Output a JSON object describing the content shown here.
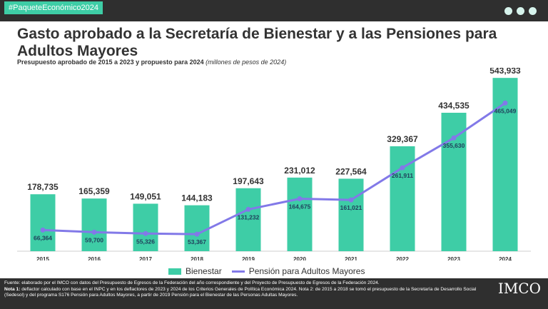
{
  "header": {
    "hashtag": "#PaqueteEconómico2024"
  },
  "title": "Gasto aprobado a la Secretaría de Bienestar y a las Pensiones para Adultos Mayores",
  "subtitle": {
    "bold": "Presupuesto aprobado de 2015 a 2023 y propuesto para 2024",
    "italic": "(millones de pesos de 2024)"
  },
  "colors": {
    "bar": "#3ecda6",
    "line": "#8279e8",
    "dark": "#2f2f2f"
  },
  "chart_data": {
    "type": "bar",
    "categories": [
      "2015",
      "2016",
      "2017",
      "2018",
      "2019",
      "2020",
      "2021",
      "2022",
      "2023",
      "2024"
    ],
    "series": [
      {
        "name": "Bienestar",
        "type": "bar",
        "values": [
          178735,
          165359,
          149051,
          144183,
          197643,
          231012,
          227564,
          329367,
          434535,
          543933
        ],
        "labels": [
          "178,735",
          "165,359",
          "149,051",
          "144,183",
          "197,643",
          "231,012",
          "227,564",
          "329,367",
          "434,535",
          "543,933"
        ]
      },
      {
        "name": "Pensión para Adultos Mayores",
        "type": "line",
        "values": [
          66364,
          59700,
          55326,
          53367,
          131232,
          164675,
          161021,
          261911,
          355630,
          465049
        ],
        "labels": [
          "66,364",
          "59,700",
          "55,326",
          "53,367",
          "131,232",
          "164,675",
          "161,021",
          "261,911",
          "355,630",
          "465,049"
        ]
      }
    ],
    "ylim": [
      0,
      560000
    ],
    "legend": "bottom"
  },
  "footer": {
    "fuente": "Fuente: elaborado por el IMCO con datos del Presupuesto de Egresos de la Federación del año correspondiente y del Proyecto de Presupuesto de Egresos de la Federación 2024.",
    "nota_label": "Nota 1:",
    "nota": " deflactor calculado con base en el INPC y en los deflactores de 2023 y 2024 de los Criterios Generales de Política Económica 2024.  Nota 2: de 2015 a 2018 se tomó el presupuesto de la Secretaría de Desarrollo Social (Sedesol) y del programa S176 Pensión para Adultos Mayores, a partir de 2019 Pensión para el Bienestar de las Personas Adultas Mayores.",
    "logo": "IMCO"
  }
}
